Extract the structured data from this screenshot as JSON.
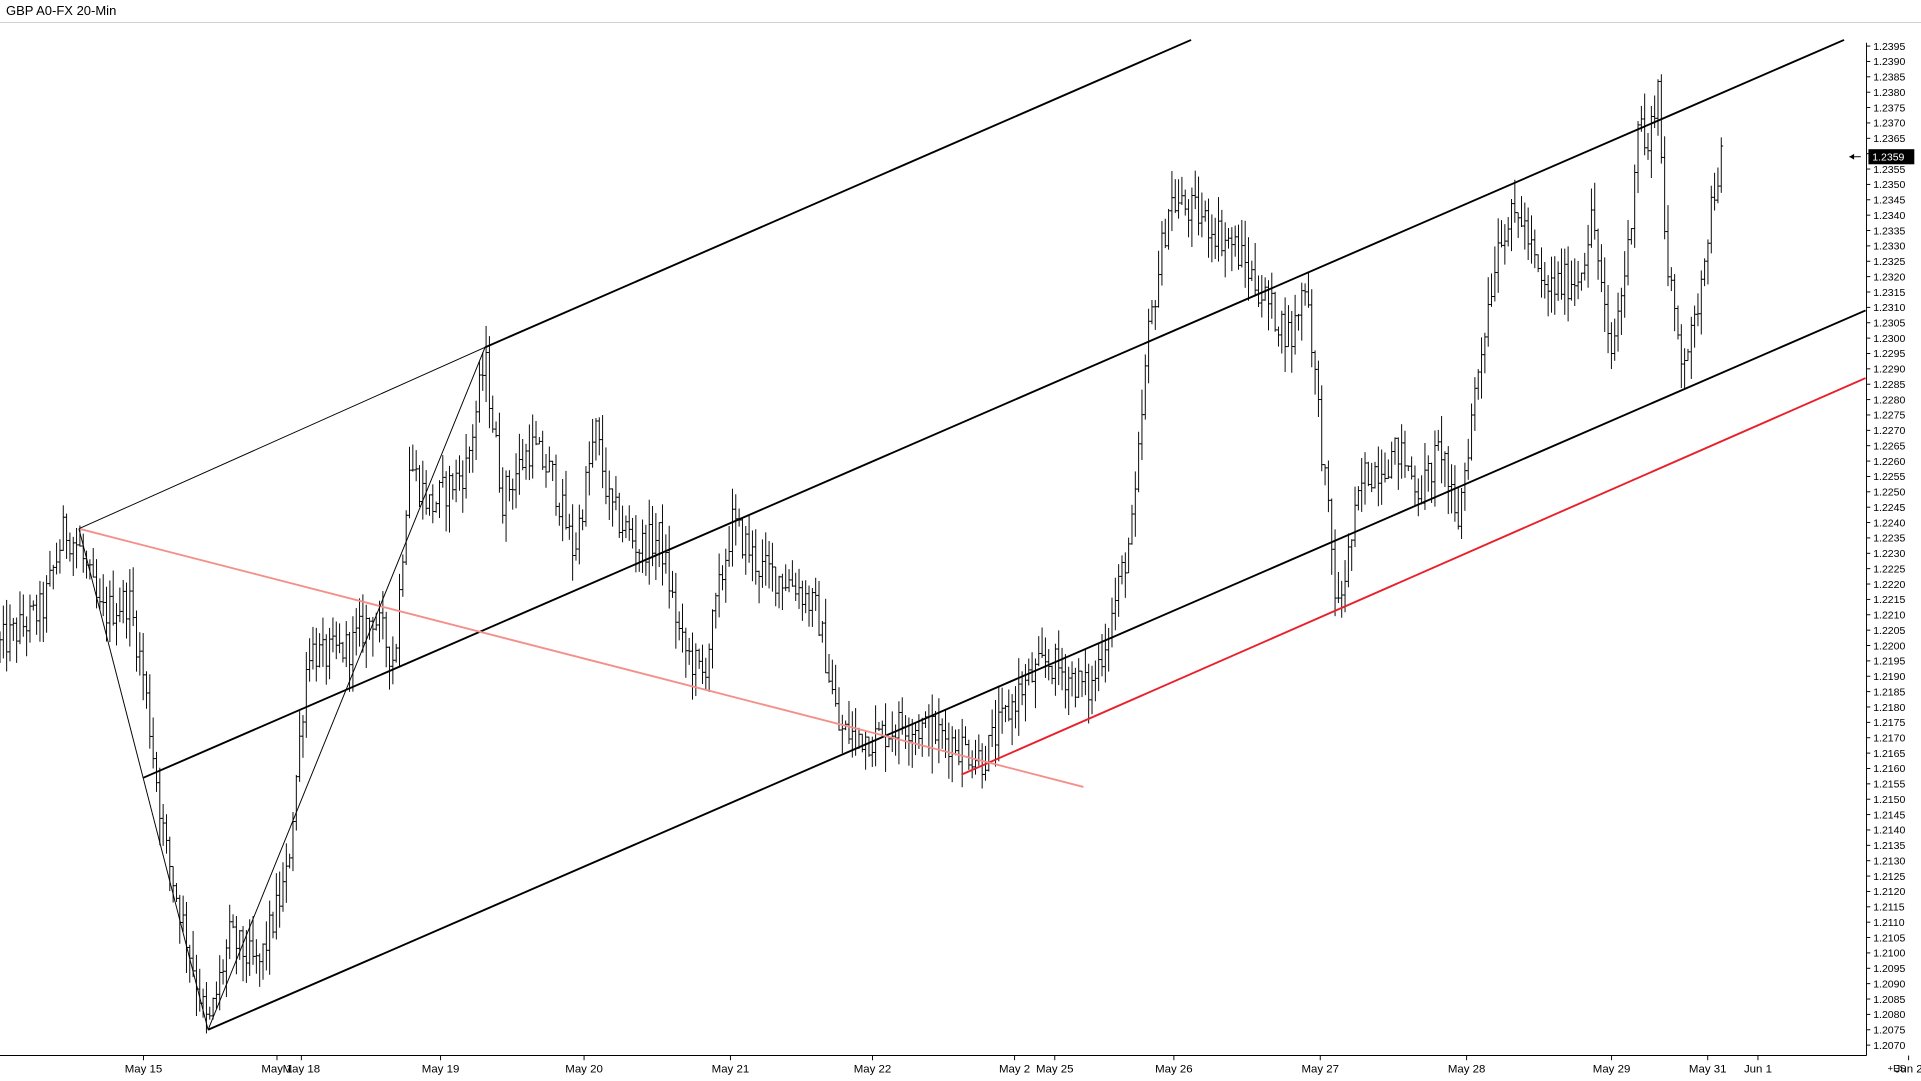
{
  "chart_data": {
    "type": "candlestick",
    "title": "GBP A0-FX 20-Min",
    "instrument": "GBP A0-FX",
    "interval": "20-Min",
    "ylim": [
      1.207,
      1.2397
    ],
    "y_ticks": [
      "1.2070",
      "1.2075",
      "1.2080",
      "1.2085",
      "1.2090",
      "1.2095",
      "1.2100",
      "1.2105",
      "1.2110",
      "1.2115",
      "1.2120",
      "1.2125",
      "1.2130",
      "1.2135",
      "1.2140",
      "1.2145",
      "1.2150",
      "1.2155",
      "1.2160",
      "1.2165",
      "1.2170",
      "1.2175",
      "1.2180",
      "1.2185",
      "1.2190",
      "1.2195",
      "1.2200",
      "1.2205",
      "1.2210",
      "1.2215",
      "1.2220",
      "1.2225",
      "1.2230",
      "1.2235",
      "1.2240",
      "1.2245",
      "1.2250",
      "1.2255",
      "1.2260",
      "1.2265",
      "1.2270",
      "1.2275",
      "1.2280",
      "1.2285",
      "1.2290",
      "1.2295",
      "1.2300",
      "1.2305",
      "1.2310",
      "1.2315",
      "1.2320",
      "1.2325",
      "1.2330",
      "1.2335",
      "1.2340",
      "1.2345",
      "1.2350",
      "1.2355",
      "1.2360",
      "1.2365",
      "1.2370",
      "1.2375",
      "1.2380",
      "1.2385",
      "1.2390",
      "1.2395"
    ],
    "last_price": "1.2359",
    "x_labels": [
      "May 15",
      "May 1",
      "May 18",
      "May 19",
      "May 20",
      "May 21",
      "May 22",
      "May 2",
      "May 25",
      "May 26",
      "May 27",
      "May 28",
      "May 29",
      "May 31",
      "Jun 1",
      "Jun 2"
    ],
    "axis_corner_label": "+ES",
    "price_path": [
      {
        "t": 0.0,
        "p": 1.22
      },
      {
        "t": 0.3,
        "p": 1.2212
      },
      {
        "t": 0.45,
        "p": 1.2238
      },
      {
        "t": 0.55,
        "p": 1.2232
      },
      {
        "t": 0.7,
        "p": 1.221
      },
      {
        "t": 0.9,
        "p": 1.2215
      },
      {
        "t": 1.0,
        "p": 1.219
      },
      {
        "t": 1.15,
        "p": 1.2135
      },
      {
        "t": 1.45,
        "p": 1.2075
      },
      {
        "t": 1.6,
        "p": 1.2105
      },
      {
        "t": 1.8,
        "p": 1.2095
      },
      {
        "t": 2.0,
        "p": 1.2125
      },
      {
        "t": 2.15,
        "p": 1.22
      },
      {
        "t": 2.25,
        "p": 1.2196
      },
      {
        "t": 2.45,
        "p": 1.22
      },
      {
        "t": 2.6,
        "p": 1.221
      },
      {
        "t": 2.75,
        "p": 1.2195
      },
      {
        "t": 2.85,
        "p": 1.226
      },
      {
        "t": 3.0,
        "p": 1.2245
      },
      {
        "t": 3.25,
        "p": 1.2258
      },
      {
        "t": 3.38,
        "p": 1.2293
      },
      {
        "t": 3.5,
        "p": 1.2248
      },
      {
        "t": 3.7,
        "p": 1.2265
      },
      {
        "t": 3.85,
        "p": 1.2255
      },
      {
        "t": 4.0,
        "p": 1.223
      },
      {
        "t": 4.15,
        "p": 1.227
      },
      {
        "t": 4.25,
        "p": 1.2245
      },
      {
        "t": 4.45,
        "p": 1.2232
      },
      {
        "t": 4.6,
        "p": 1.2235
      },
      {
        "t": 4.75,
        "p": 1.22
      },
      {
        "t": 4.9,
        "p": 1.219
      },
      {
        "t": 5.1,
        "p": 1.224
      },
      {
        "t": 5.3,
        "p": 1.2225
      },
      {
        "t": 5.55,
        "p": 1.222
      },
      {
        "t": 5.7,
        "p": 1.221
      },
      {
        "t": 5.85,
        "p": 1.2172
      },
      {
        "t": 6.1,
        "p": 1.217
      },
      {
        "t": 6.3,
        "p": 1.2175
      },
      {
        "t": 6.6,
        "p": 1.217
      },
      {
        "t": 6.85,
        "p": 1.2163
      },
      {
        "t": 7.1,
        "p": 1.2185
      },
      {
        "t": 7.3,
        "p": 1.2195
      },
      {
        "t": 7.6,
        "p": 1.2185
      },
      {
        "t": 7.75,
        "p": 1.221
      },
      {
        "t": 7.9,
        "p": 1.224
      },
      {
        "t": 8.0,
        "p": 1.23
      },
      {
        "t": 8.15,
        "p": 1.2345
      },
      {
        "t": 8.35,
        "p": 1.234
      },
      {
        "t": 8.6,
        "p": 1.233
      },
      {
        "t": 8.85,
        "p": 1.231
      },
      {
        "t": 9.0,
        "p": 1.23
      },
      {
        "t": 9.1,
        "p": 1.232
      },
      {
        "t": 9.25,
        "p": 1.2245
      },
      {
        "t": 9.32,
        "p": 1.221
      },
      {
        "t": 9.5,
        "p": 1.2255
      },
      {
        "t": 9.75,
        "p": 1.2263
      },
      {
        "t": 9.9,
        "p": 1.225
      },
      {
        "t": 10.05,
        "p": 1.2265
      },
      {
        "t": 10.15,
        "p": 1.2237
      },
      {
        "t": 10.3,
        "p": 1.229
      },
      {
        "t": 10.45,
        "p": 1.2335
      },
      {
        "t": 10.6,
        "p": 1.234
      },
      {
        "t": 10.75,
        "p": 1.2315
      },
      {
        "t": 11.0,
        "p": 1.232
      },
      {
        "t": 11.1,
        "p": 1.234
      },
      {
        "t": 11.22,
        "p": 1.2292
      },
      {
        "t": 11.35,
        "p": 1.233
      },
      {
        "t": 11.42,
        "p": 1.2375
      },
      {
        "t": 11.48,
        "p": 1.2358
      },
      {
        "t": 11.55,
        "p": 1.2385
      },
      {
        "t": 11.62,
        "p": 1.232
      },
      {
        "t": 11.72,
        "p": 1.2295
      },
      {
        "t": 11.8,
        "p": 1.23
      },
      {
        "t": 11.88,
        "p": 1.233
      },
      {
        "t": 11.95,
        "p": 1.235
      },
      {
        "t": 12.0,
        "p": 1.2359
      }
    ],
    "trendlines": [
      {
        "name": "channel-upper",
        "color": "#000000",
        "x1": 3.38,
        "y1": 1.2297,
        "x2": 8.3,
        "y2": 1.2397
      },
      {
        "name": "channel-middle",
        "color": "#000000",
        "x1": 1.0,
        "y1": 1.2157,
        "x2": 12.85,
        "y2": 1.2397
      },
      {
        "name": "channel-lower",
        "color": "#000000",
        "x1": 1.45,
        "y1": 1.2075,
        "x2": 13.0,
        "y2": 1.2309
      },
      {
        "name": "support-red",
        "color": "#e8202a",
        "x1": 6.7,
        "y1": 1.2158,
        "x2": 13.0,
        "y2": 1.2287
      },
      {
        "name": "descending-pink",
        "color": "#f4908a",
        "x1": 0.55,
        "y1": 1.2238,
        "x2": 7.55,
        "y2": 1.2154
      },
      {
        "name": "pivot-a-b",
        "color": "#000000",
        "x1": 0.55,
        "y1": 1.2238,
        "x2": 1.45,
        "y2": 1.2075
      },
      {
        "name": "pivot-b-c",
        "color": "#000000",
        "x1": 1.45,
        "y1": 1.2075,
        "x2": 3.38,
        "y2": 1.2297
      },
      {
        "name": "pivot-a-c",
        "color": "#000000",
        "x1": 0.55,
        "y1": 1.2238,
        "x2": 3.38,
        "y2": 1.2297
      }
    ]
  }
}
